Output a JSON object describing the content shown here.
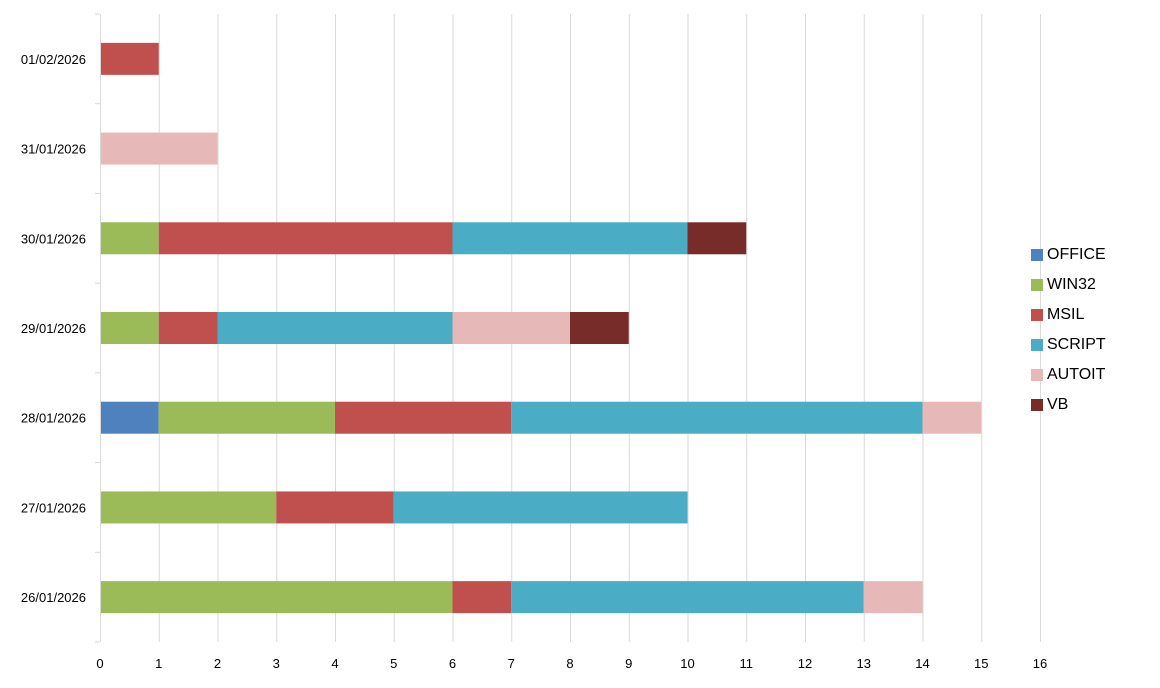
{
  "chart_data": {
    "type": "bar",
    "orientation": "horizontal",
    "stacked": true,
    "categories": [
      "01/02/2026",
      "31/01/2026",
      "30/01/2026",
      "29/01/2026",
      "28/01/2026",
      "27/01/2026",
      "26/01/2026"
    ],
    "series": [
      {
        "name": "OFFICE",
        "color": "#4F81BD",
        "values": [
          0,
          0,
          0,
          0,
          1,
          0,
          0
        ]
      },
      {
        "name": "WIN32",
        "color": "#9BBB59",
        "values": [
          0,
          0,
          1,
          1,
          3,
          3,
          6
        ]
      },
      {
        "name": "MSIL",
        "color": "#C0504D",
        "values": [
          1,
          0,
          5,
          1,
          3,
          2,
          1
        ]
      },
      {
        "name": "SCRIPT",
        "color": "#4BACC6",
        "values": [
          0,
          0,
          4,
          4,
          7,
          5,
          6
        ]
      },
      {
        "name": "AUTOIT",
        "color": "#E6B9B8",
        "values": [
          0,
          2,
          0,
          2,
          1,
          0,
          1
        ]
      },
      {
        "name": "VB",
        "color": "#772C2A",
        "values": [
          0,
          0,
          1,
          1,
          0,
          0,
          0
        ]
      }
    ],
    "xlim": [
      0,
      16
    ],
    "x_ticks": [
      "0",
      "1",
      "2",
      "3",
      "4",
      "5",
      "6",
      "7",
      "8",
      "9",
      "10",
      "11",
      "12",
      "13",
      "14",
      "15",
      "16"
    ],
    "title": "",
    "xlabel": "",
    "ylabel": "",
    "grid": "vertical",
    "legend_position": "right"
  }
}
